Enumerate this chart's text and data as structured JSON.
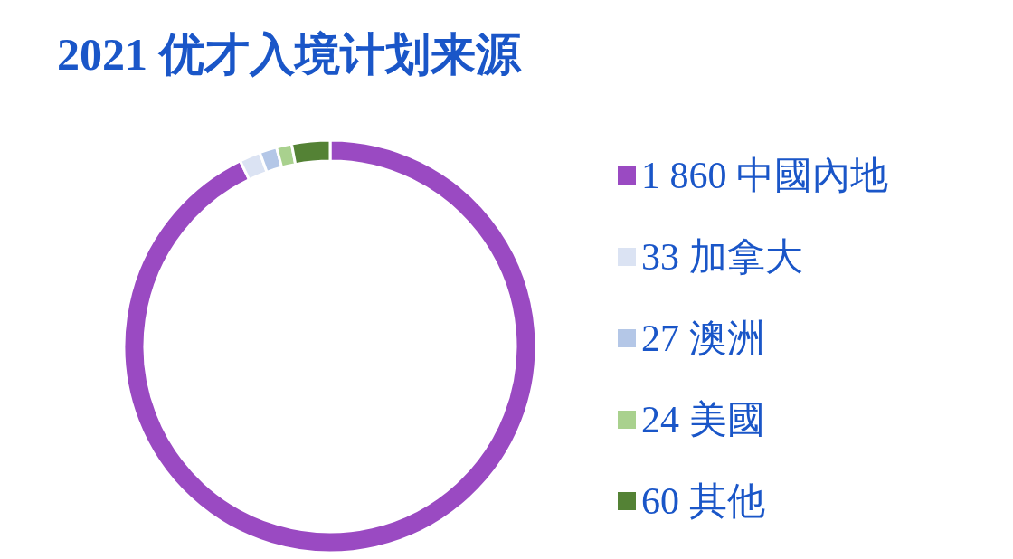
{
  "chart_data": {
    "type": "donut",
    "title": "2021 优才入境计划来源",
    "categories": [
      "中國內地",
      "加拿大",
      "澳洲",
      "美國",
      "其他"
    ],
    "values": [
      1860,
      33,
      27,
      24,
      60
    ],
    "value_labels": [
      "1 860",
      "33",
      "27",
      "24",
      "60"
    ],
    "colors": [
      "#9a4ac2",
      "#dbe3f3",
      "#b4c7e7",
      "#a9d18e",
      "#548235"
    ],
    "legend": "right"
  }
}
